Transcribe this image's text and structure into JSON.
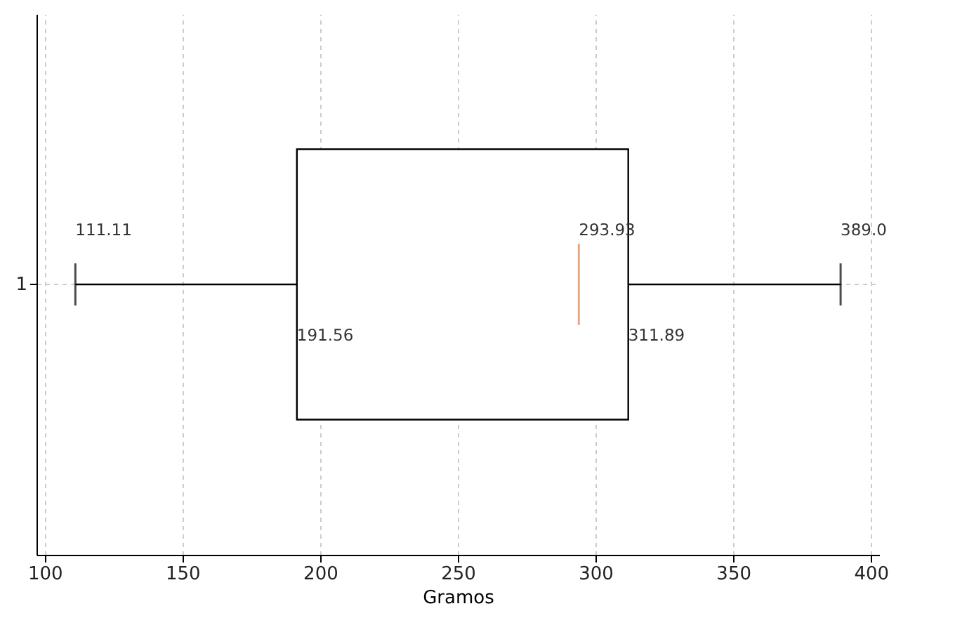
{
  "chart_data": {
    "type": "box",
    "orientation": "horizontal",
    "categories": [
      "1"
    ],
    "xlabel": "Gramos",
    "xlim": [
      97,
      403
    ],
    "xticks": [
      100,
      150,
      200,
      250,
      300,
      350,
      400
    ],
    "grid": true,
    "series": [
      {
        "color": "#000000",
        "boxes": [
          {
            "low": 111.11,
            "q1": 191.56,
            "median": 293.93,
            "q3": 311.89,
            "high": 389.0
          }
        ]
      }
    ],
    "annotations": [
      "111.11",
      "191.56",
      "293.93",
      "311.89",
      "389.0"
    ]
  }
}
